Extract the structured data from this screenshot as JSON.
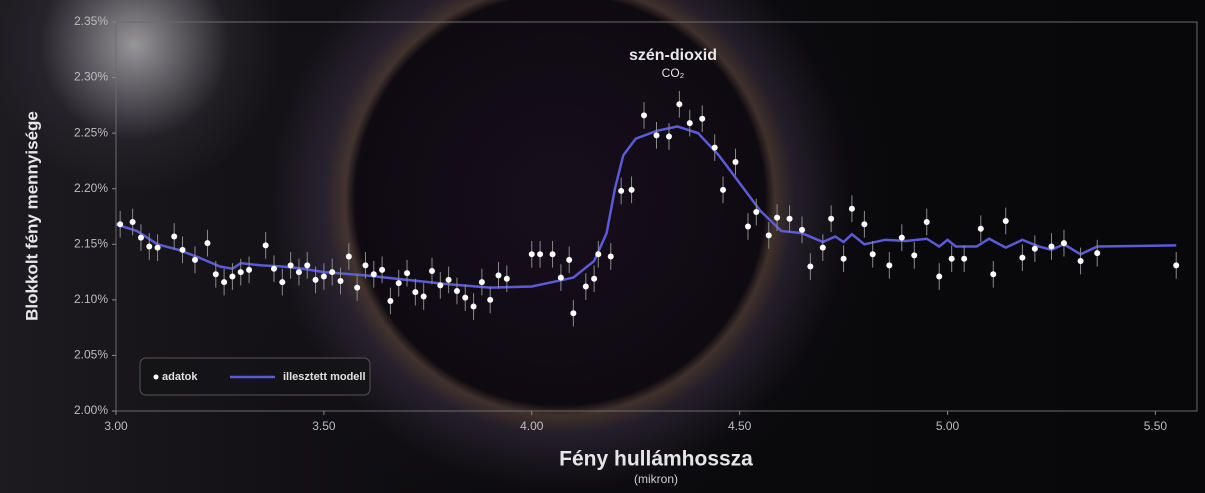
{
  "chart_data": {
    "type": "scatter",
    "title": "szén-dioxid",
    "subtitle": "CO₂",
    "x_label": "Fény hullámhossza",
    "x_sublabel": "(mikron)",
    "y_label": "Blokkolt fény mennyisége",
    "xlim": [
      3.0,
      5.6
    ],
    "ylim": [
      2.0,
      2.35
    ],
    "xticks": [
      {
        "value": 3,
        "label": "3.00"
      },
      {
        "value": 3.5,
        "label": "3.50"
      },
      {
        "value": 4,
        "label": "4.00"
      },
      {
        "value": 4.5,
        "label": "4.50"
      },
      {
        "value": 5,
        "label": "5.00"
      },
      {
        "value": 5.5,
        "label": "5.50"
      }
    ],
    "yticks": [
      {
        "value": 2.0,
        "label": "2.00%"
      },
      {
        "value": 2.05,
        "label": "2.05%"
      },
      {
        "value": 2.1,
        "label": "2.10%"
      },
      {
        "value": 2.15,
        "label": "2.15%"
      },
      {
        "value": 2.2,
        "label": "2.20%"
      },
      {
        "value": 2.25,
        "label": "2.25%"
      },
      {
        "value": 2.3,
        "label": "2.30%"
      },
      {
        "value": 2.35,
        "label": "2.35%"
      }
    ],
    "legend": "bottom-left",
    "series": [
      {
        "name": "adatok",
        "type": "scatter",
        "color": "#ffffff",
        "error": 0.012,
        "x": [
          3.01,
          3.04,
          3.06,
          3.08,
          3.1,
          3.14,
          3.16,
          3.19,
          3.22,
          3.24,
          3.26,
          3.28,
          3.3,
          3.32,
          3.36,
          3.38,
          3.4,
          3.42,
          3.44,
          3.46,
          3.48,
          3.5,
          3.52,
          3.54,
          3.56,
          3.58,
          3.6,
          3.62,
          3.64,
          3.66,
          3.68,
          3.7,
          3.72,
          3.74,
          3.76,
          3.78,
          3.8,
          3.82,
          3.84,
          3.86,
          3.88,
          3.9,
          3.92,
          3.94,
          4.0,
          4.02,
          4.05,
          4.07,
          4.09,
          4.1,
          4.13,
          4.15,
          4.16,
          4.19,
          4.215,
          4.24,
          4.27,
          4.3,
          4.33,
          4.355,
          4.38,
          4.41,
          4.44,
          4.46,
          4.49,
          4.52,
          4.54,
          4.57,
          4.59,
          4.62,
          4.65,
          4.67,
          4.7,
          4.72,
          4.75,
          4.77,
          4.8,
          4.82,
          4.86,
          4.89,
          4.92,
          4.95,
          4.98,
          5.01,
          5.04,
          5.08,
          5.11,
          5.14,
          5.18,
          5.21,
          5.25,
          5.28,
          5.32,
          5.36,
          5.55
        ],
        "values": [
          2.168,
          2.17,
          2.156,
          2.148,
          2.147,
          2.157,
          2.145,
          2.136,
          2.151,
          2.123,
          2.116,
          2.121,
          2.125,
          2.127,
          2.149,
          2.128,
          2.116,
          2.131,
          2.125,
          2.131,
          2.118,
          2.121,
          2.125,
          2.117,
          2.139,
          2.111,
          2.131,
          2.123,
          2.127,
          2.099,
          2.115,
          2.124,
          2.107,
          2.103,
          2.126,
          2.113,
          2.118,
          2.108,
          2.102,
          2.094,
          2.116,
          2.1,
          2.122,
          2.119,
          2.141,
          2.141,
          2.141,
          2.12,
          2.136,
          2.088,
          2.112,
          2.119,
          2.141,
          2.139,
          2.198,
          2.199,
          2.266,
          2.248,
          2.247,
          2.276,
          2.259,
          2.263,
          2.237,
          2.199,
          2.224,
          2.166,
          2.179,
          2.158,
          2.174,
          2.173,
          2.163,
          2.13,
          2.147,
          2.173,
          2.137,
          2.182,
          2.168,
          2.141,
          2.131,
          2.156,
          2.14,
          2.17,
          2.121,
          2.137,
          2.137,
          2.164,
          2.123,
          2.171,
          2.138,
          2.146,
          2.148,
          2.151,
          2.135,
          2.142,
          2.131
        ]
      },
      {
        "name": "illesztett modell",
        "type": "line",
        "color": "#5b5bd8",
        "x": [
          3.0,
          3.05,
          3.1,
          3.15,
          3.2,
          3.25,
          3.28,
          3.3,
          3.35,
          3.4,
          3.45,
          3.5,
          3.6,
          3.7,
          3.8,
          3.9,
          4.0,
          4.05,
          4.1,
          4.15,
          4.18,
          4.2,
          4.22,
          4.25,
          4.3,
          4.35,
          4.4,
          4.45,
          4.5,
          4.55,
          4.6,
          4.65,
          4.7,
          4.73,
          4.75,
          4.77,
          4.8,
          4.85,
          4.9,
          4.95,
          4.98,
          5.0,
          5.02,
          5.07,
          5.1,
          5.14,
          5.18,
          5.22,
          5.25,
          5.28,
          5.32,
          5.36,
          5.55
        ],
        "values": [
          2.168,
          2.162,
          2.15,
          2.145,
          2.138,
          2.13,
          2.128,
          2.133,
          2.131,
          2.13,
          2.128,
          2.125,
          2.122,
          2.118,
          2.114,
          2.111,
          2.112,
          2.116,
          2.12,
          2.135,
          2.16,
          2.2,
          2.23,
          2.245,
          2.252,
          2.256,
          2.25,
          2.23,
          2.205,
          2.18,
          2.162,
          2.16,
          2.152,
          2.157,
          2.152,
          2.159,
          2.15,
          2.154,
          2.153,
          2.155,
          2.148,
          2.154,
          2.148,
          2.148,
          2.155,
          2.147,
          2.154,
          2.148,
          2.145,
          2.15,
          2.141,
          2.148,
          2.149
        ]
      }
    ]
  }
}
